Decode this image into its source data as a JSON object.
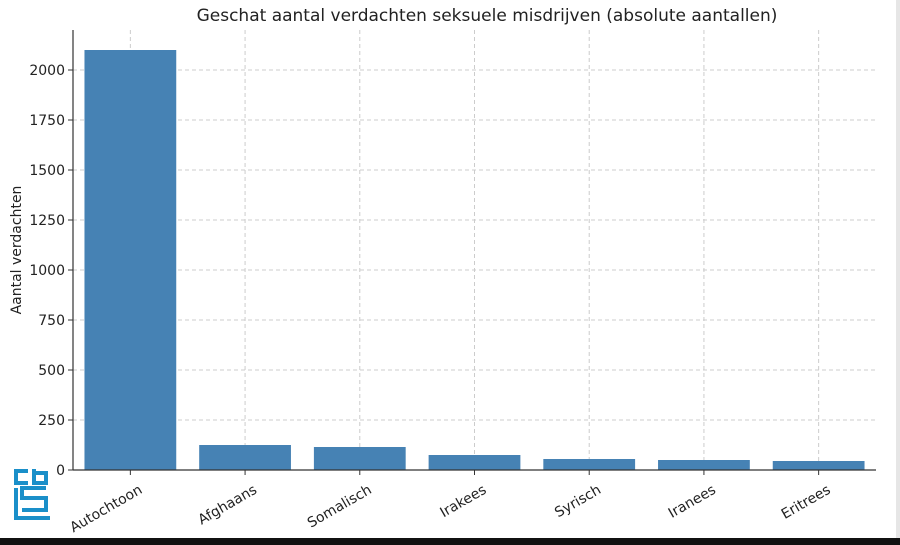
{
  "chart_data": {
    "type": "bar",
    "title": "Geschat aantal verdachten seksuele misdrijven (absolute aantallen)",
    "xlabel": "",
    "ylabel": "Aantal verdachten",
    "categories": [
      "Autochtoon",
      "Afghaans",
      "Somalisch",
      "Irakees",
      "Syrisch",
      "Iranees",
      "Eritrees"
    ],
    "values": [
      2100,
      125,
      115,
      75,
      55,
      50,
      45
    ],
    "ylim": [
      0,
      2200
    ],
    "yticks": [
      0,
      250,
      500,
      750,
      1000,
      1250,
      1500,
      1750,
      2000
    ],
    "grid": true,
    "bar_color": "#4682b4"
  },
  "colors": {
    "axis": "#333333",
    "grid": "#cccccc",
    "text": "#222222",
    "logo": "#1a8fc9"
  },
  "logo": {
    "name": "cbs-logo-icon",
    "text": "cbs"
  }
}
